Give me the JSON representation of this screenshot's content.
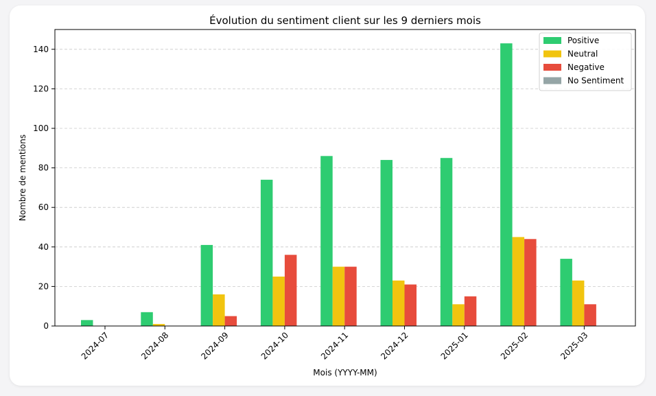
{
  "chart_data": {
    "type": "bar",
    "title": "Évolution du sentiment client sur les 9 derniers mois",
    "xlabel": "Mois (YYYY-MM)",
    "ylabel": "Nombre de mentions",
    "ylim": [
      0,
      150
    ],
    "yticks": [
      "0",
      "20",
      "40",
      "60",
      "80",
      "100",
      "120",
      "140"
    ],
    "ytick_values": [
      0,
      20,
      40,
      60,
      80,
      100,
      120,
      140
    ],
    "grid": true,
    "legend_position": "top-right",
    "categories": [
      "2024-07",
      "2024-08",
      "2024-09",
      "2024-10",
      "2024-11",
      "2024-12",
      "2025-01",
      "2025-02",
      "2025-03"
    ],
    "series": [
      {
        "name": "Positive",
        "color": "#2ecc71",
        "values": [
          3,
          7,
          41,
          74,
          86,
          84,
          85,
          143,
          34
        ]
      },
      {
        "name": "Neutral",
        "color": "#f1c40f",
        "values": [
          0,
          1,
          16,
          25,
          30,
          23,
          11,
          45,
          23
        ]
      },
      {
        "name": "Negative",
        "color": "#e74c3c",
        "values": [
          0,
          0,
          5,
          36,
          30,
          21,
          15,
          44,
          11
        ]
      },
      {
        "name": "No Sentiment",
        "color": "#95a5a6",
        "values": [
          0,
          0,
          0,
          0,
          0,
          0,
          0,
          0,
          0
        ]
      }
    ]
  }
}
